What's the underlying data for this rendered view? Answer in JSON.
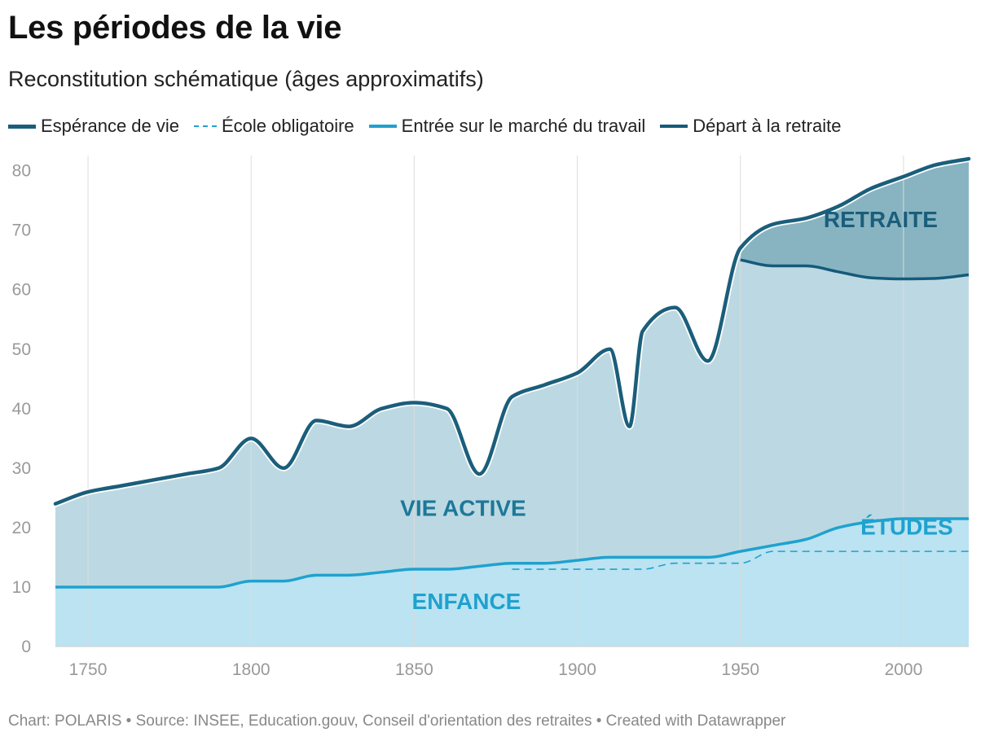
{
  "header": {
    "title": "Les périodes de la vie",
    "subtitle": "Reconstitution schématique (âges approximatifs)"
  },
  "legend": [
    {
      "label": "Espérance de vie",
      "color": "#1b5e7b",
      "style": "solid"
    },
    {
      "label": "École obligatoire",
      "color": "#1fa2cf",
      "style": "dashed"
    },
    {
      "label": "Entrée sur le marché du travail",
      "color": "#1fa2cf",
      "style": "solid"
    },
    {
      "label": "Départ à la retraite",
      "color": "#155a7a",
      "style": "solid"
    }
  ],
  "footer": {
    "text": "Chart: POLARIS • Source: INSEE, Education.gouv, Conseil d'orientation des retraites • Created with Datawrapper"
  },
  "colors": {
    "active_fill": "#bcd9e3",
    "retirement_fill": "#88b4c2",
    "childhood_fill": "#bbe3f1",
    "grid": "#dcdcdc",
    "tick_text": "#999999",
    "life_line": "#1b5e7b",
    "work_line": "#1fa2cf",
    "retire_line": "#155a7a"
  },
  "chart_data": {
    "type": "area",
    "xlim": [
      1740,
      2020
    ],
    "ylim": [
      0,
      82
    ],
    "x_ticks": [
      1750,
      1800,
      1850,
      1900,
      1950,
      2000
    ],
    "y_ticks": [
      0,
      10,
      20,
      30,
      40,
      50,
      60,
      70,
      80
    ],
    "grid": "vertical",
    "legend_position": "top",
    "annotations": [
      {
        "text": "RETRAITE",
        "x": 1993,
        "y": 70.5,
        "color": "#1b5e7b"
      },
      {
        "text": "VIE ACTIVE",
        "x": 1865,
        "y": 22,
        "color": "#1d7898"
      },
      {
        "text": "ÉTUDES",
        "x": 2001,
        "y": 18.8,
        "color": "#1fa2cf"
      },
      {
        "text": "ENFANCE",
        "x": 1866,
        "y": 6.3,
        "color": "#1fa2cf"
      }
    ],
    "series": [
      {
        "name": "Espérance de vie",
        "x": [
          1740,
          1750,
          1760,
          1770,
          1780,
          1790,
          1800,
          1810,
          1820,
          1830,
          1840,
          1850,
          1860,
          1870,
          1880,
          1890,
          1900,
          1910,
          1916,
          1920,
          1930,
          1940,
          1950,
          1960,
          1970,
          1980,
          1990,
          2000,
          2010,
          2020
        ],
        "y": [
          24,
          26,
          27,
          28,
          29,
          30,
          35,
          30,
          38,
          37,
          40,
          41,
          40,
          29,
          42,
          44,
          46,
          50,
          37,
          53,
          57,
          48,
          67,
          71,
          72,
          74,
          77,
          79,
          81,
          82
        ]
      },
      {
        "name": "École obligatoire",
        "x": [
          1880,
          1920,
          1930,
          1950,
          1960,
          2020
        ],
        "y": [
          13,
          13,
          14,
          14,
          16,
          16
        ]
      },
      {
        "name": "Entrée sur le marché du travail",
        "x": [
          1740,
          1790,
          1800,
          1810,
          1820,
          1830,
          1840,
          1850,
          1860,
          1870,
          1880,
          1890,
          1900,
          1910,
          1920,
          1930,
          1940,
          1950,
          1960,
          1970,
          1980,
          1990,
          2000,
          2010,
          2020
        ],
        "y": [
          10,
          10,
          11,
          11,
          12,
          12,
          12.5,
          13,
          13,
          13.5,
          14,
          14,
          14.5,
          15,
          15,
          15,
          15,
          16,
          17,
          18,
          20,
          21,
          21.5,
          21.5,
          21.5
        ]
      },
      {
        "name": "Départ à la retraite",
        "x": [
          1950,
          1960,
          1970,
          1980,
          1990,
          2000,
          2010,
          2020
        ],
        "y": [
          65,
          64,
          64,
          63,
          62,
          61.8,
          61.9,
          62.5
        ]
      }
    ]
  }
}
